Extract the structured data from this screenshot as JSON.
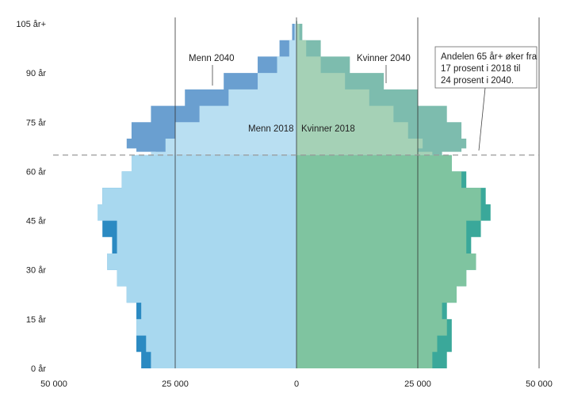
{
  "chart_data": {
    "type": "area",
    "title": "",
    "xlabel": "",
    "ylabel": "",
    "xlim": [
      -50000,
      50000
    ],
    "ylim": [
      0,
      105
    ],
    "x_ticks": [
      -50000,
      -25000,
      0,
      25000,
      50000
    ],
    "x_tick_labels": [
      "50 000",
      "25 000",
      "0",
      "25 000",
      "50 000"
    ],
    "y_ticks": [
      0,
      15,
      30,
      45,
      60,
      75,
      90,
      105
    ],
    "y_tick_labels": [
      "0 år",
      "15 år",
      "30 år",
      "45 år",
      "60 år",
      "75 år",
      "90 år",
      "105 år+"
    ],
    "vertical_gridlines_at": [
      -25000,
      0,
      25000,
      50000
    ],
    "reference_line_age": 65,
    "ages": [
      0,
      5,
      10,
      15,
      20,
      25,
      30,
      35,
      40,
      45,
      50,
      55,
      60,
      65,
      66,
      67,
      70,
      75,
      80,
      85,
      90,
      95,
      100,
      105
    ],
    "series": [
      {
        "name": "Menn 2018",
        "side": "left",
        "color": "#a8d8ef",
        "values": [
          30000,
          31000,
          33000,
          32000,
          35000,
          37000,
          39000,
          37000,
          37000,
          41000,
          40000,
          36000,
          34000,
          30000,
          27000,
          27000,
          25000,
          20000,
          14000,
          8000,
          4000,
          1500,
          400,
          50
        ]
      },
      {
        "name": "Kvinner 2018",
        "side": "right",
        "color": "#7fc4a0",
        "values": [
          28000,
          29000,
          31000,
          30000,
          33000,
          35000,
          37000,
          35000,
          35000,
          38000,
          38000,
          34000,
          32000,
          28000,
          25000,
          26000,
          23000,
          20000,
          15000,
          10000,
          5000,
          2000,
          600,
          80
        ]
      },
      {
        "name": "Menn 2040",
        "side": "left",
        "color": "#2b8ac2",
        "values": [
          32000,
          33000,
          33000,
          33000,
          35000,
          37000,
          39000,
          38000,
          40000,
          40000,
          40000,
          36000,
          33000,
          29000,
          33000,
          35000,
          34000,
          30000,
          23000,
          15000,
          8000,
          3500,
          900,
          100
        ]
      },
      {
        "name": "Kvinner 2040",
        "side": "right",
        "color": "#3aa89a",
        "values": [
          31000,
          32000,
          32000,
          31000,
          33000,
          35000,
          37000,
          36000,
          38000,
          40000,
          39000,
          35000,
          32000,
          30000,
          34000,
          35000,
          34000,
          31000,
          25000,
          18000,
          11000,
          5000,
          1200,
          150
        ]
      }
    ],
    "annotations": [
      {
        "id": "menn2040",
        "text": "Menn 2040"
      },
      {
        "id": "kvinner2040",
        "text": "Kvinner 2040"
      },
      {
        "id": "menn2018",
        "text": "Menn 2018"
      },
      {
        "id": "kvinner2018",
        "text": "Kvinner 2018"
      },
      {
        "id": "callout",
        "lines": [
          "Andelen 65 år+ øker fra",
          "17 prosent i 2018 til",
          "24 prosent i 2040."
        ]
      }
    ],
    "colors": {
      "menn_2018": "#a8d8ef",
      "kvinner_2018": "#7fc4a0",
      "menn_2040": "#2b8ac2",
      "kvinner_2040": "#3aa89a",
      "menn_2040_upper": "#6a9fd0",
      "kvinner_2040_upper": "#7dbcae",
      "menn_2018_upper": "#b9dff2",
      "kvinner_2018_upper": "#a5d1b6"
    }
  }
}
